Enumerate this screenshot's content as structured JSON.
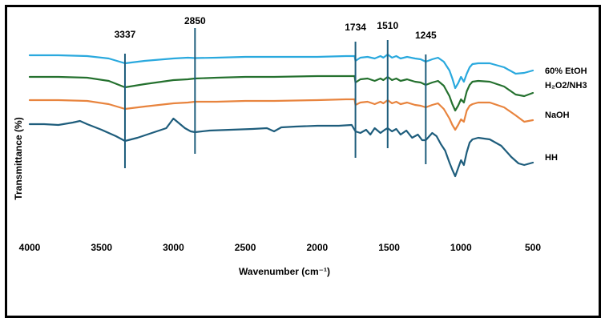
{
  "chart_data": {
    "type": "line",
    "title": "",
    "xlabel": "Wavenumber (cm⁻¹)",
    "ylabel": "Transmittance (%)",
    "xlim": [
      4000,
      500
    ],
    "x_reversed": true,
    "x_ticks": [
      4000,
      3500,
      3000,
      2500,
      2000,
      1500,
      1000,
      500
    ],
    "y_ticks_shown": false,
    "grid": false,
    "legend": "inline-right",
    "peak_markers": [
      {
        "label": "3337",
        "x": 3337
      },
      {
        "label": "2850",
        "x": 2850
      },
      {
        "label": "1734",
        "x": 1734
      },
      {
        "label": "1510",
        "x": 1510
      },
      {
        "label": "1245",
        "x": 1245
      }
    ],
    "series": [
      {
        "name": "60% EtOH",
        "color": "#2aa9de",
        "points": [
          [
            4000,
            69
          ],
          [
            3800,
            69
          ],
          [
            3600,
            70
          ],
          [
            3450,
            73
          ],
          [
            3337,
            79
          ],
          [
            3200,
            76
          ],
          [
            3000,
            73
          ],
          [
            2900,
            72
          ],
          [
            2850,
            72.5
          ],
          [
            2700,
            72
          ],
          [
            2500,
            71
          ],
          [
            2300,
            71
          ],
          [
            2000,
            71
          ],
          [
            1800,
            70
          ],
          [
            1740,
            70
          ],
          [
            1734,
            76
          ],
          [
            1700,
            72
          ],
          [
            1650,
            71
          ],
          [
            1600,
            73
          ],
          [
            1560,
            70
          ],
          [
            1540,
            72
          ],
          [
            1510,
            68
          ],
          [
            1480,
            72
          ],
          [
            1450,
            70
          ],
          [
            1420,
            73
          ],
          [
            1375,
            71
          ],
          [
            1320,
            73
          ],
          [
            1280,
            74
          ],
          [
            1245,
            77
          ],
          [
            1200,
            74
          ],
          [
            1160,
            72
          ],
          [
            1120,
            77
          ],
          [
            1080,
            88
          ],
          [
            1060,
            98
          ],
          [
            1040,
            110
          ],
          [
            1020,
            104
          ],
          [
            1000,
            96
          ],
          [
            980,
            102
          ],
          [
            960,
            92
          ],
          [
            940,
            84
          ],
          [
            920,
            80
          ],
          [
            880,
            79
          ],
          [
            800,
            79
          ],
          [
            700,
            84
          ],
          [
            620,
            92
          ],
          [
            560,
            91
          ],
          [
            500,
            88
          ]
        ]
      },
      {
        "name": "H₂O2/NH3",
        "color": "#25712f",
        "points": [
          [
            4000,
            96
          ],
          [
            3800,
            96
          ],
          [
            3600,
            97
          ],
          [
            3450,
            101
          ],
          [
            3337,
            109
          ],
          [
            3200,
            105
          ],
          [
            3000,
            100
          ],
          [
            2900,
            99
          ],
          [
            2850,
            98
          ],
          [
            2700,
            97
          ],
          [
            2500,
            96
          ],
          [
            2300,
            96
          ],
          [
            2000,
            95
          ],
          [
            1800,
            95
          ],
          [
            1740,
            95
          ],
          [
            1734,
            103
          ],
          [
            1700,
            99
          ],
          [
            1650,
            98
          ],
          [
            1600,
            101
          ],
          [
            1560,
            98
          ],
          [
            1540,
            100
          ],
          [
            1510,
            96
          ],
          [
            1480,
            100
          ],
          [
            1450,
            98
          ],
          [
            1420,
            101
          ],
          [
            1375,
            99
          ],
          [
            1320,
            102
          ],
          [
            1280,
            103
          ],
          [
            1245,
            106
          ],
          [
            1200,
            103
          ],
          [
            1160,
            101
          ],
          [
            1120,
            107
          ],
          [
            1080,
            120
          ],
          [
            1060,
            130
          ],
          [
            1040,
            138
          ],
          [
            1020,
            132
          ],
          [
            1000,
            124
          ],
          [
            980,
            128
          ],
          [
            960,
            114
          ],
          [
            940,
            106
          ],
          [
            920,
            102
          ],
          [
            880,
            101
          ],
          [
            800,
            102
          ],
          [
            700,
            108
          ],
          [
            620,
            118
          ],
          [
            560,
            120
          ],
          [
            500,
            116
          ]
        ]
      },
      {
        "name": "NaOH",
        "color": "#e8843e",
        "points": [
          [
            4000,
            125
          ],
          [
            3800,
            125
          ],
          [
            3600,
            126
          ],
          [
            3450,
            130
          ],
          [
            3337,
            136
          ],
          [
            3200,
            133
          ],
          [
            3000,
            129
          ],
          [
            2900,
            128
          ],
          [
            2850,
            127
          ],
          [
            2700,
            127
          ],
          [
            2500,
            126
          ],
          [
            2300,
            126
          ],
          [
            2000,
            125
          ],
          [
            1800,
            124
          ],
          [
            1740,
            124
          ],
          [
            1734,
            131
          ],
          [
            1700,
            128
          ],
          [
            1650,
            127
          ],
          [
            1600,
            130
          ],
          [
            1560,
            127
          ],
          [
            1540,
            129
          ],
          [
            1510,
            125
          ],
          [
            1480,
            129
          ],
          [
            1450,
            127
          ],
          [
            1420,
            130
          ],
          [
            1375,
            128
          ],
          [
            1320,
            131
          ],
          [
            1280,
            132
          ],
          [
            1245,
            134
          ],
          [
            1200,
            131
          ],
          [
            1160,
            129
          ],
          [
            1120,
            136
          ],
          [
            1080,
            148
          ],
          [
            1060,
            156
          ],
          [
            1040,
            162
          ],
          [
            1020,
            156
          ],
          [
            1000,
            149
          ],
          [
            980,
            152
          ],
          [
            960,
            138
          ],
          [
            940,
            132
          ],
          [
            920,
            130
          ],
          [
            880,
            128
          ],
          [
            800,
            128
          ],
          [
            700,
            134
          ],
          [
            620,
            144
          ],
          [
            560,
            152
          ],
          [
            500,
            150
          ]
        ]
      },
      {
        "name": "HH",
        "color": "#1e5d7c",
        "points": [
          [
            4000,
            155
          ],
          [
            3900,
            155
          ],
          [
            3800,
            156
          ],
          [
            3700,
            153
          ],
          [
            3650,
            151
          ],
          [
            3600,
            155
          ],
          [
            3500,
            162
          ],
          [
            3400,
            170
          ],
          [
            3337,
            176
          ],
          [
            3250,
            172
          ],
          [
            3150,
            166
          ],
          [
            3050,
            160
          ],
          [
            3000,
            148
          ],
          [
            2960,
            154
          ],
          [
            2920,
            160
          ],
          [
            2880,
            164
          ],
          [
            2850,
            165
          ],
          [
            2750,
            163
          ],
          [
            2600,
            162
          ],
          [
            2450,
            161
          ],
          [
            2350,
            160
          ],
          [
            2300,
            164
          ],
          [
            2250,
            159
          ],
          [
            2150,
            158
          ],
          [
            2000,
            157
          ],
          [
            1850,
            157
          ],
          [
            1760,
            156
          ],
          [
            1734,
            164
          ],
          [
            1700,
            166
          ],
          [
            1660,
            162
          ],
          [
            1630,
            168
          ],
          [
            1600,
            160
          ],
          [
            1560,
            166
          ],
          [
            1530,
            162
          ],
          [
            1510,
            160
          ],
          [
            1480,
            164
          ],
          [
            1450,
            161
          ],
          [
            1420,
            168
          ],
          [
            1380,
            163
          ],
          [
            1340,
            172
          ],
          [
            1300,
            168
          ],
          [
            1270,
            175
          ],
          [
            1245,
            175
          ],
          [
            1200,
            166
          ],
          [
            1170,
            170
          ],
          [
            1140,
            180
          ],
          [
            1110,
            188
          ],
          [
            1080,
            203
          ],
          [
            1060,
            212
          ],
          [
            1040,
            220
          ],
          [
            1020,
            210
          ],
          [
            1000,
            200
          ],
          [
            980,
            206
          ],
          [
            960,
            190
          ],
          [
            940,
            178
          ],
          [
            920,
            174
          ],
          [
            880,
            172
          ],
          [
            800,
            174
          ],
          [
            720,
            182
          ],
          [
            650,
            196
          ],
          [
            600,
            204
          ],
          [
            560,
            206
          ],
          [
            500,
            203
          ]
        ]
      }
    ]
  }
}
